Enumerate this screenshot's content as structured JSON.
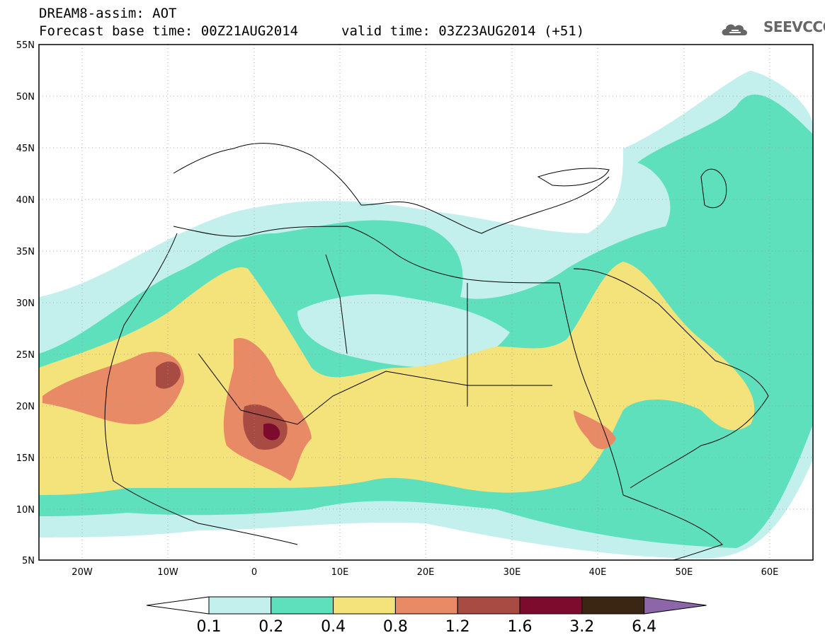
{
  "header": {
    "title": "DREAM8-assim: AOT",
    "base_time": "Forecast base time: 00Z21AUG2014",
    "valid_time": "valid time: 03Z23AUG2014 (+51)",
    "logo_text": "SEEVCCC"
  },
  "map": {
    "variable": "AOT",
    "lat_range": [
      5,
      55
    ],
    "lon_range": [
      -25,
      65
    ],
    "lat_labels": [
      "55N",
      "50N",
      "45N",
      "40N",
      "35N",
      "30N",
      "25N",
      "20N",
      "15N",
      "10N",
      "5N"
    ],
    "lon_labels": [
      "20W",
      "10W",
      "0",
      "10E",
      "20E",
      "30E",
      "40E",
      "50E",
      "60E"
    ],
    "grid": true
  },
  "colorbar": {
    "levels": [
      "0.1",
      "0.2",
      "0.4",
      "0.8",
      "1.2",
      "1.6",
      "3.2",
      "6.4"
    ],
    "colors": [
      "#c3f0ec",
      "#5ee0bd",
      "#f4e27a",
      "#e98a67",
      "#a84b43",
      "#7d0b2e",
      "#3a2612",
      "#8c66a8"
    ],
    "underflow_color": "#ffffff",
    "overflow_color": "#8c66a8"
  }
}
